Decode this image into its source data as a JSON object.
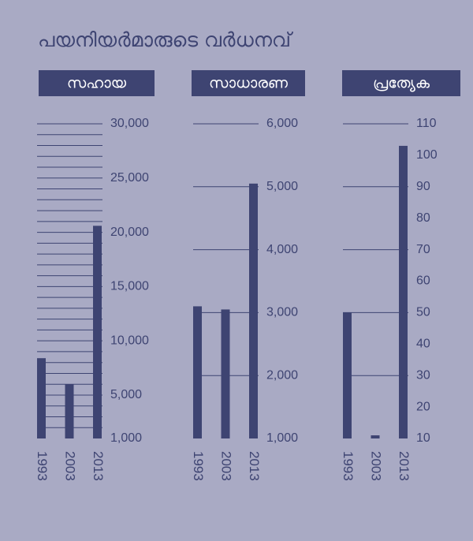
{
  "title": "പയനിയർമാരുടെ വർധനവ്",
  "chart_data": [
    {
      "type": "bar",
      "title": "സഹായ",
      "categories": [
        "1993",
        "2003",
        "2013"
      ],
      "values": [
        8400,
        6000,
        20600
      ],
      "color": "#3e4472",
      "ylim": [
        1000,
        30000
      ],
      "grid_step": 1000,
      "yticks": [
        {
          "value": 1000,
          "label": "1,000"
        },
        {
          "value": 5000,
          "label": "5,000"
        },
        {
          "value": 10000,
          "label": "10,000"
        },
        {
          "value": 15000,
          "label": "15,000"
        },
        {
          "value": 20000,
          "label": "20,000"
        },
        {
          "value": 25000,
          "label": "25,000"
        },
        {
          "value": 30000,
          "label": "30,000"
        }
      ]
    },
    {
      "type": "bar",
      "title": "സാധാരണ",
      "categories": [
        "1993",
        "2003",
        "2013"
      ],
      "values": [
        3100,
        3050,
        5050
      ],
      "color": "#3e4472",
      "ylim": [
        1000,
        6000
      ],
      "grid_step": 1000,
      "yticks": [
        {
          "value": 1000,
          "label": "1,000"
        },
        {
          "value": 2000,
          "label": "2,000"
        },
        {
          "value": 3000,
          "label": "3,000"
        },
        {
          "value": 4000,
          "label": "4,000"
        },
        {
          "value": 5000,
          "label": "5,000"
        },
        {
          "value": 6000,
          "label": "6,000"
        }
      ]
    },
    {
      "type": "bar",
      "title": "പ്രത്യേക",
      "categories": [
        "1993",
        "2003",
        "2013"
      ],
      "values": [
        50,
        11,
        103
      ],
      "color": "#3e4472",
      "ylim": [
        10,
        110
      ],
      "grid_step": 20,
      "yticks": [
        10,
        20,
        30,
        40,
        50,
        60,
        70,
        80,
        90,
        100,
        110
      ]
    }
  ]
}
